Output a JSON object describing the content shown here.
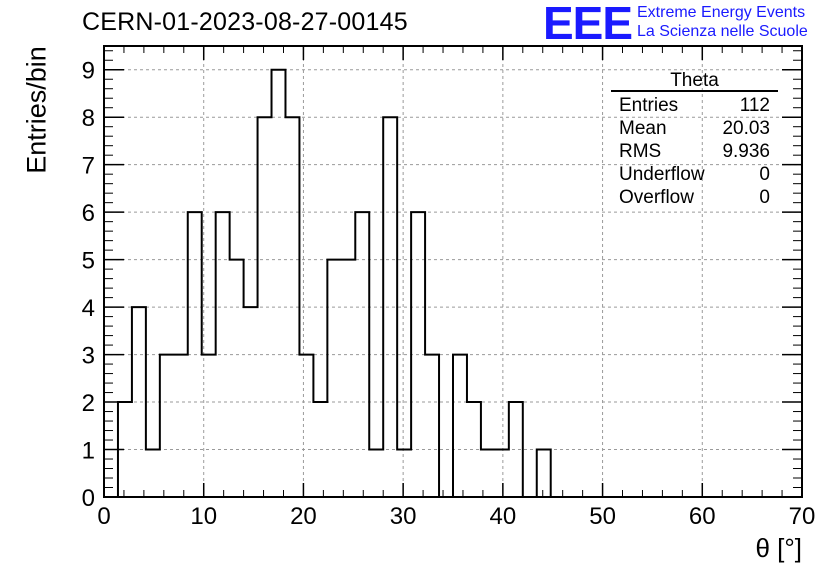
{
  "title": "CERN-01-2023-08-27-00145",
  "logo": {
    "mark": "EEE",
    "line1": "Extreme Energy Events",
    "line2": "La Scienza nelle Scuole",
    "color": "#1a1aff"
  },
  "stats_box": {
    "name": "Theta",
    "rows": [
      {
        "label": "Entries",
        "value": "112"
      },
      {
        "label": "Mean",
        "value": "20.03"
      },
      {
        "label": "RMS",
        "value": "9.936"
      },
      {
        "label": "Underflow",
        "value": "0"
      },
      {
        "label": "Overflow",
        "value": "0"
      }
    ]
  },
  "chart_data": {
    "type": "histogram",
    "xlabel": "θ [°]",
    "ylabel": "Entries/bin",
    "xlim": [
      0,
      70
    ],
    "ylim": [
      0,
      9.5
    ],
    "xticks": [
      0,
      10,
      20,
      30,
      40,
      50,
      60,
      70
    ],
    "yticks": [
      0,
      1,
      2,
      3,
      4,
      5,
      6,
      7,
      8,
      9
    ],
    "grid": true,
    "bin_width": 1.4,
    "bin_edges_start": 0,
    "values": [
      0,
      2,
      4,
      1,
      3,
      3,
      6,
      3,
      6,
      5,
      4,
      8,
      9,
      8,
      3,
      2,
      5,
      5,
      6,
      1,
      8,
      1,
      6,
      3,
      0,
      3,
      2,
      1,
      1,
      2,
      0,
      1,
      0,
      0,
      0,
      0,
      0,
      0,
      0,
      0,
      0,
      0,
      0,
      0,
      0,
      0,
      0,
      0,
      0,
      0
    ]
  }
}
